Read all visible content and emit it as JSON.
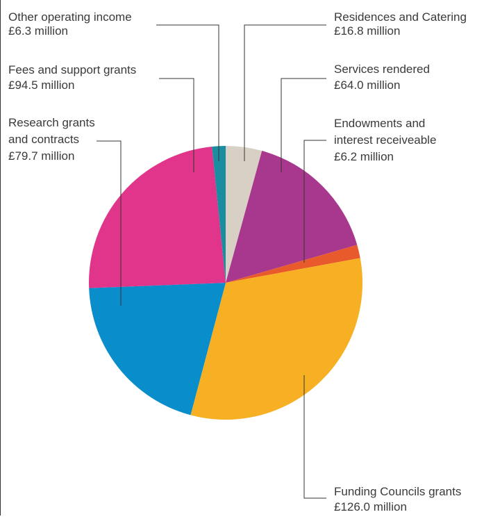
{
  "chart_data": {
    "type": "pie",
    "title": "",
    "unit": "£ million",
    "slices": [
      {
        "name": "Residences and Catering",
        "value_label": "£16.8 million",
        "value": 16.8,
        "color": "#d9d0c5"
      },
      {
        "name": "Services rendered",
        "value_label": "£64.0 million",
        "value": 64.0,
        "color": "#a8388d"
      },
      {
        "name": "Endowments and interest receiveable",
        "value_label": "£6.2 million",
        "value": 6.2,
        "color": "#e85a2b"
      },
      {
        "name": "Funding Councils grants",
        "value_label": "£126.0 million",
        "value": 126.0,
        "color": "#f7b024"
      },
      {
        "name": "Research grants and contracts",
        "value_label": "£79.7 million",
        "value": 79.7,
        "color": "#0a8dcb"
      },
      {
        "name": "Fees and support grants",
        "value_label": "£94.5 million",
        "value": 94.5,
        "color": "#e0358a"
      },
      {
        "name": "Other operating income",
        "value_label": "£6.3 million",
        "value": 6.3,
        "color": "#1a8ea0"
      }
    ]
  }
}
